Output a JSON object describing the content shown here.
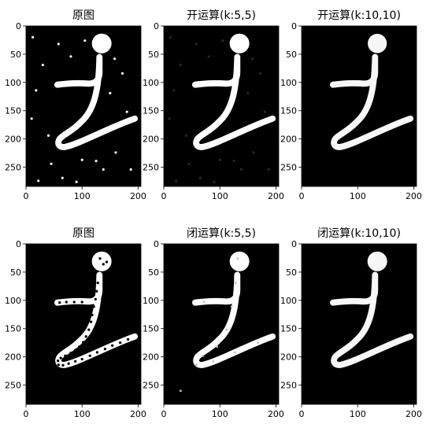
{
  "figure": {
    "background": "#ffffff",
    "panel_background": "#000000",
    "stroke_color": "#ffffff",
    "axis_color": "#000000",
    "panels": [
      {
        "title": "原图",
        "variant": "original-noise-white",
        "xticks": [
          "0",
          "100",
          "200"
        ],
        "yticks": [
          "0",
          "50",
          "100",
          "150",
          "200",
          "250"
        ]
      },
      {
        "title": "开运算(k:5,5)",
        "variant": "open-small",
        "xticks": [
          "0",
          "100",
          "200"
        ],
        "yticks": [
          "0",
          "50",
          "100",
          "150",
          "200",
          "250"
        ]
      },
      {
        "title": "开运算(k:10,10)",
        "variant": "open-large",
        "xticks": [
          "0",
          "100",
          "200"
        ],
        "yticks": [
          "0",
          "50",
          "100",
          "150",
          "200",
          "250"
        ]
      },
      {
        "title": "原图",
        "variant": "original-holes-black",
        "xticks": [
          "0",
          "100",
          "200"
        ],
        "yticks": [
          "0",
          "50",
          "100",
          "150",
          "200",
          "250"
        ]
      },
      {
        "title": "闭运算(k:5,5)",
        "variant": "close-small",
        "xticks": [
          "0",
          "100",
          "200"
        ],
        "yticks": [
          "0",
          "50",
          "100",
          "150",
          "200",
          "250"
        ]
      },
      {
        "title": "闭运算(k:10,10)",
        "variant": "close-large",
        "xticks": [
          "0",
          "100",
          "200"
        ],
        "yticks": [
          "0",
          "50",
          "100",
          "150",
          "200",
          "250"
        ]
      }
    ]
  }
}
